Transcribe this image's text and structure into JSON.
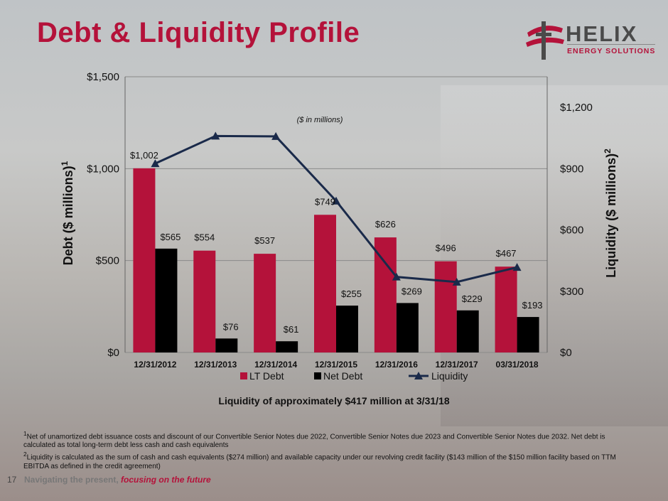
{
  "header": {
    "title": "Debt & Liquidity Profile",
    "logo_word": "HELIX",
    "logo_sub": "ENERGY SOLUTIONS"
  },
  "chart_data": {
    "type": "bar",
    "categories": [
      "12/31/2012",
      "12/31/2013",
      "12/31/2014",
      "12/31/2015",
      "12/31/2016",
      "12/31/2017",
      "03/31/2018"
    ],
    "series": [
      {
        "name": "LT Debt",
        "type": "bar",
        "axis": "left",
        "color": "#b4123a",
        "values": [
          1002,
          554,
          537,
          749,
          626,
          496,
          467
        ],
        "labels": [
          "$1,002",
          "$554",
          "$537",
          "$749",
          "$626",
          "$496",
          "$467"
        ]
      },
      {
        "name": "Net Debt",
        "type": "bar",
        "axis": "left",
        "color": "#000000",
        "values": [
          565,
          76,
          61,
          255,
          269,
          229,
          193
        ],
        "labels": [
          "$565",
          "$76",
          "$61",
          "$255",
          "$269",
          "$229",
          "$193"
        ]
      },
      {
        "name": "Liquidity",
        "type": "line",
        "axis": "right",
        "color": "#1a2a4a",
        "values": [
          925,
          1060,
          1058,
          742,
          370,
          345,
          417
        ]
      }
    ],
    "ylabel": "Debt ($ millions)",
    "ylabel_sup": "1",
    "y2label": "Liquidity  ($ millions)",
    "y2label_sup": "2",
    "ylim": [
      0,
      1500
    ],
    "y2lim": [
      0,
      1350
    ],
    "yticks": [
      0,
      500,
      1000,
      1500
    ],
    "ytick_labels": [
      "$0",
      "$500",
      "$1,000",
      "$1,500"
    ],
    "y2ticks": [
      0,
      300,
      600,
      900,
      1200
    ],
    "y2tick_labels": [
      "$0",
      "$300",
      "$600",
      "$900",
      "$1,200"
    ],
    "annotation": "($ in millions)",
    "grid": true,
    "legend_position": "bottom"
  },
  "subtitle": "Liquidity of approximately $417 million at 3/31/18",
  "footnotes": {
    "note1_mark": "1",
    "note1": "Net of unamortized debt issuance costs and discount of our Convertible Senior Notes due 2022, Convertible Senior Notes due 2023 and Convertible Senior Notes due 2032. Net debt is calculated as total long-term debt less cash and cash equivalents",
    "note2_mark": "2",
    "note2": "Liquidity is calculated as the sum of cash and cash equivalents ($274 million) and available capacity under our revolving credit facility ($143 million of the $150 million facility based on TTM EBITDA as defined in the credit agreement)"
  },
  "footer": {
    "page_number": "17",
    "tagline_lead": "Navigating the present,",
    "tagline_em": "focusing on the future"
  }
}
